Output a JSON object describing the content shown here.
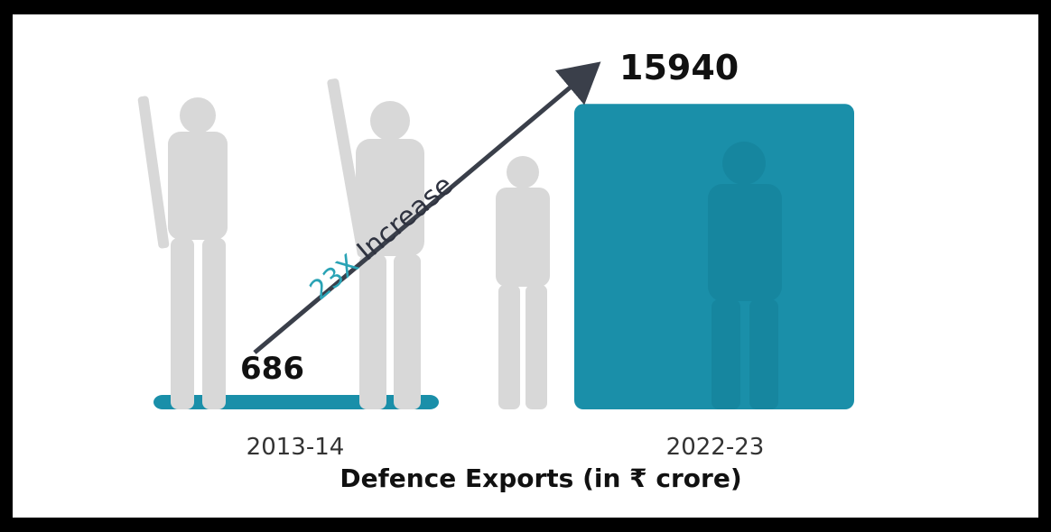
{
  "colors": {
    "bar": "#1a8fa9",
    "silhouette": "#d8d8d8",
    "arrow": "#3a3f4a",
    "annotation_number": "#2aa3b5",
    "annotation_word": "#2f3340",
    "frame": "#000000",
    "panel": "#ffffff"
  },
  "chart_data": {
    "type": "bar",
    "title": "Defence Exports (in ₹ crore)",
    "categories": [
      "2013-14",
      "2022-23"
    ],
    "values": [
      686,
      15940
    ],
    "ylim": [
      0,
      16000
    ],
    "grid": false,
    "annotation": {
      "number": "23X",
      "word": " Increase"
    }
  }
}
